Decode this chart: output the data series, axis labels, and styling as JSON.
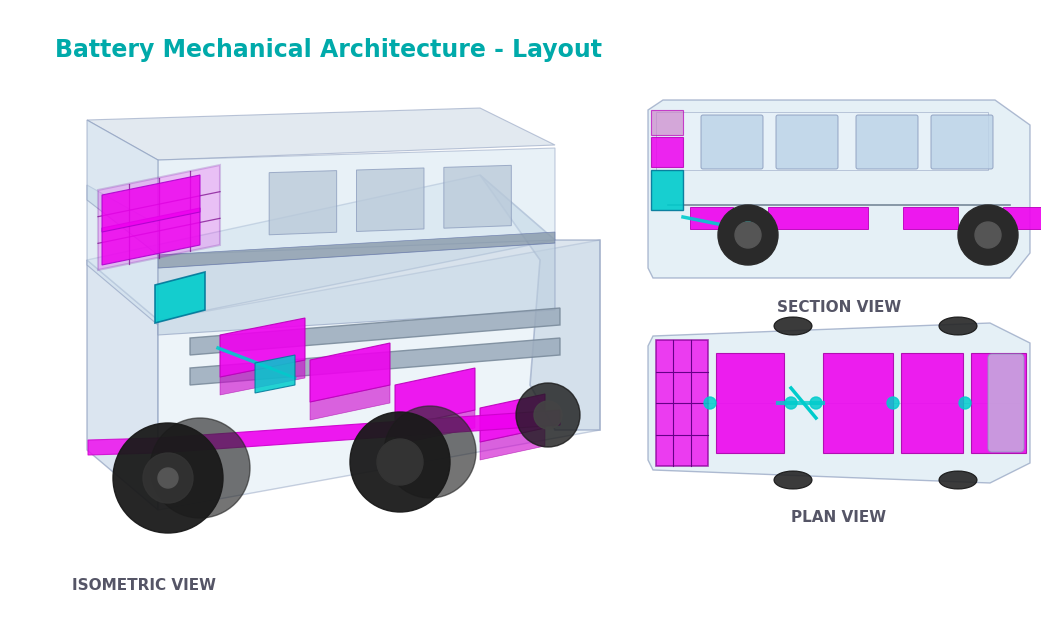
{
  "title": "Battery Mechanical Architecture - Layout",
  "title_color": "#00AAAA",
  "title_fontsize": 17,
  "title_weight": "bold",
  "background_color": "#ffffff",
  "label_isometric": "ISOMETRIC VIEW",
  "label_section": "SECTION VIEW",
  "label_plan": "PLAN VIEW",
  "label_color": "#555566",
  "label_fontsize": 11,
  "magenta": "#EE00EE",
  "cyan": "#00CCCC",
  "bus_body_color": "#D8E8F2",
  "bus_outline_color": "#8899BB",
  "wheel_color": "#2A2A2A",
  "window_color": "#BDD4E8",
  "gray_panel": "#B8C8D8"
}
